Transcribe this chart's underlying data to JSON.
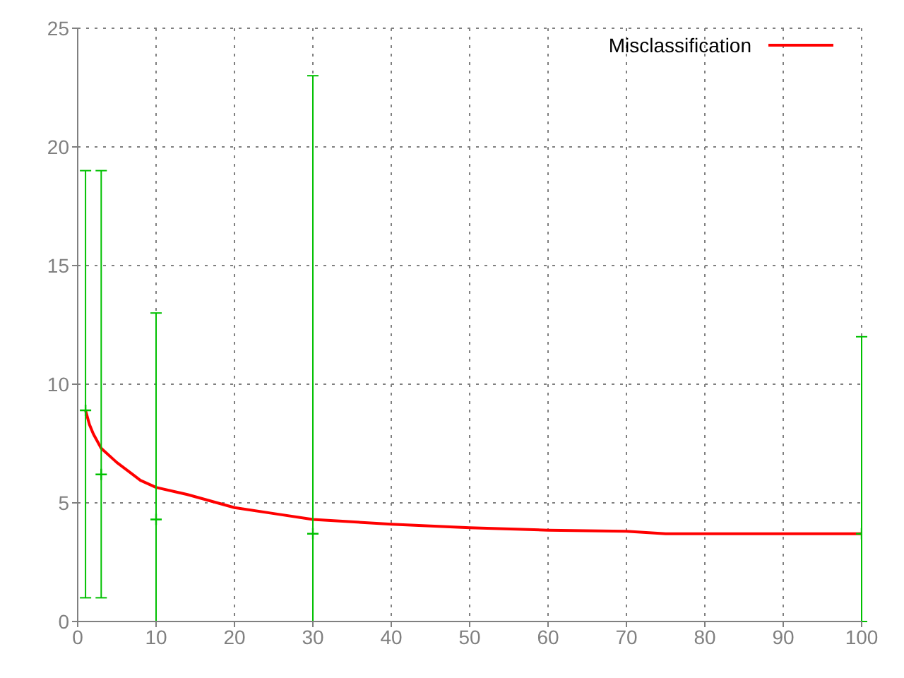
{
  "chart_data": {
    "type": "line",
    "xlim": [
      0,
      100
    ],
    "ylim": [
      0,
      25
    ],
    "xticks": [
      0,
      10,
      20,
      30,
      40,
      50,
      60,
      70,
      80,
      90,
      100
    ],
    "yticks": [
      0,
      5,
      10,
      15,
      20,
      25
    ],
    "grid": true,
    "legend": "top right",
    "series": [
      {
        "name": "Misclassification",
        "color": "#ff0000",
        "x": [
          1,
          1.5,
          2,
          3,
          5,
          7,
          8,
          10,
          14,
          20,
          25,
          30,
          40,
          50,
          60,
          70,
          75,
          100
        ],
        "values": [
          8.9,
          8.3,
          7.9,
          7.3,
          6.7,
          6.2,
          5.95,
          5.65,
          5.35,
          4.8,
          4.55,
          4.3,
          4.1,
          3.95,
          3.85,
          3.8,
          3.7,
          3.7
        ]
      },
      {
        "type": "scatter",
        "marker": "cross",
        "color": "#00c000",
        "x": [
          1,
          3,
          10,
          30,
          100
        ],
        "values": [
          8.9,
          6.2,
          4.3,
          3.7,
          3.7
        ],
        "errors": [
          [
            1,
            19
          ],
          [
            1,
            19
          ],
          [
            0,
            13
          ],
          [
            0,
            23
          ],
          [
            0,
            12
          ]
        ]
      }
    ]
  }
}
